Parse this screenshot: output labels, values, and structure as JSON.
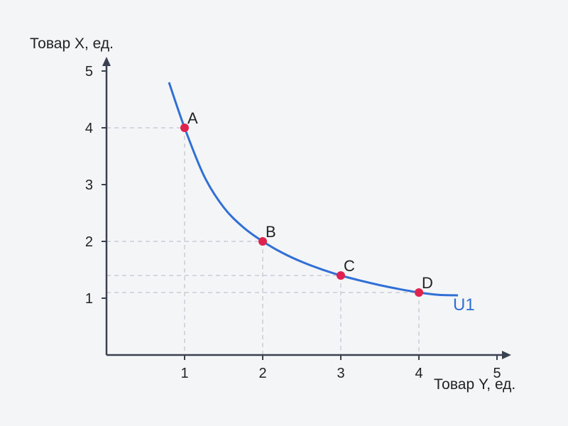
{
  "chart_data": {
    "type": "line",
    "xlabel": "Товар Y, ед.",
    "ylabel": "Товар X, ед.",
    "xlim": [
      0,
      5
    ],
    "ylim": [
      0,
      5
    ],
    "x_ticks": [
      "1",
      "2",
      "3",
      "4",
      "5"
    ],
    "y_ticks": [
      "1",
      "2",
      "3",
      "4",
      "5"
    ],
    "grid": false,
    "series": [
      {
        "name": "U1",
        "color": "#2f6fd6",
        "curve_x": [
          0.8,
          1.0,
          1.25,
          1.5,
          1.75,
          2.0,
          2.25,
          2.5,
          2.75,
          3.0,
          3.25,
          3.5,
          3.75,
          4.0,
          4.25,
          4.5
        ],
        "curve_y": [
          4.8,
          4.0,
          3.15,
          2.6,
          2.25,
          2.0,
          1.8,
          1.64,
          1.51,
          1.4,
          1.31,
          1.23,
          1.16,
          1.1,
          1.06,
          1.05
        ]
      }
    ],
    "points": [
      {
        "label": "A",
        "x": 1,
        "y": 4
      },
      {
        "label": "B",
        "x": 2,
        "y": 2
      },
      {
        "label": "C",
        "x": 3,
        "y": 1.4
      },
      {
        "label": "D",
        "x": 4,
        "y": 1.1
      }
    ],
    "point_color": "#e0234e",
    "guide_color": "#c9ced6"
  }
}
